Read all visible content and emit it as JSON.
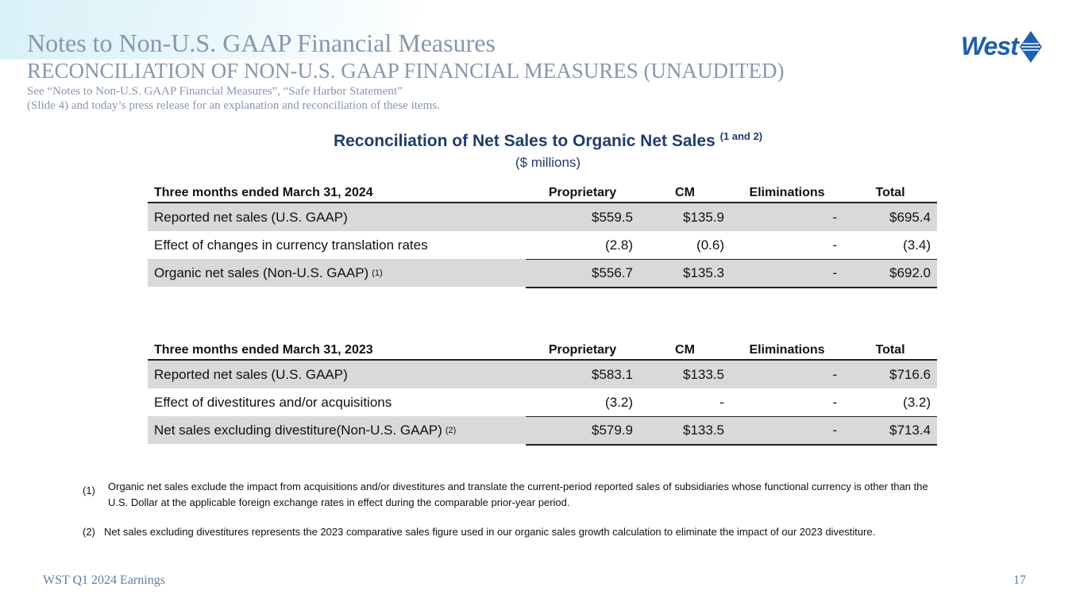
{
  "header": {
    "title": "Notes to Non-U.S. GAAP Financial Measures",
    "subtitle": "RECONCILIATION OF NON-U.S. GAAP FINANCIAL MEASURES (UNAUDITED)",
    "intro": [
      "See “Notes to Non-U.S. GAAP Financial Measures”, “Safe Harbor Statement”",
      "(Slide 4) and today’s press release for an explanation and reconciliation of these items."
    ],
    "logo": "West"
  },
  "section": {
    "title": "Reconciliation of Net Sales to Organic Net Sales",
    "title_note": "(1 and 2)",
    "units": "($ millions)"
  },
  "tables": [
    {
      "columns": [
        "Three months ended March 31, 2024",
        "Proprietary",
        "CM",
        "Eliminations",
        "Total"
      ],
      "rows": [
        {
          "label": "Reported net sales (U.S. GAAP)",
          "cells": [
            "$559.5",
            "$135.9",
            "-",
            "$695.4"
          ]
        },
        {
          "label": "Effect of changes in currency translation rates",
          "cells": [
            "(2.8)",
            "(0.6)",
            "-",
            "(3.4)"
          ]
        },
        {
          "label": "Organic net sales (Non-U.S. GAAP)",
          "note": "(1)",
          "cells": [
            "$556.7",
            "$135.3",
            "-",
            "$692.0"
          ]
        }
      ]
    },
    {
      "columns": [
        "Three months ended March 31, 2023",
        "Proprietary",
        "CM",
        "Eliminations",
        "Total"
      ],
      "rows": [
        {
          "label": "Reported net sales (U.S. GAAP)",
          "cells": [
            "$583.1",
            "$133.5",
            "-",
            "$716.6"
          ]
        },
        {
          "label": "Effect of divestitures and/or acquisitions",
          "cells": [
            "(3.2)",
            "-",
            "-",
            "(3.2)"
          ]
        },
        {
          "label": "Net sales excluding divestiture(Non-U.S. GAAP)",
          "note": "(2)",
          "cells": [
            "$579.9",
            "$133.5",
            "-",
            "$713.4"
          ]
        }
      ]
    }
  ],
  "footnotes": [
    {
      "marker": "(1)",
      "lines": [
        "Organic net sales exclude the impact from acquisitions and/or divestitures and translate the current-period reported sales of subsidiaries whose functional currency is other than the",
        "U.S. Dollar at the applicable foreign exchange rates in effect during the comparable prior-year period."
      ]
    },
    {
      "marker": "(2)",
      "lines": [
        "Net sales excluding divestitures represents the 2023 comparative sales figure used in our organic sales growth calculation to eliminate the impact of our 2023 divestiture."
      ]
    }
  ],
  "footer": {
    "left": "WST Q1 2024 Earnings",
    "page": "17"
  }
}
